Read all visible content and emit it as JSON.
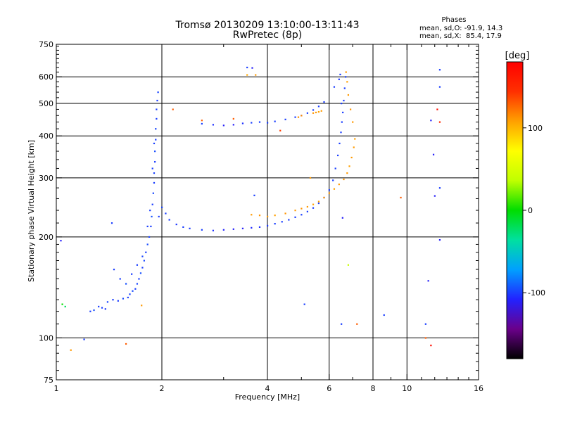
{
  "chart_data": {
    "type": "scatter",
    "title": "Tromsø 20130209 13:10:00-13:11:43",
    "subtitle": "RwPretec (8p)",
    "xlabel": "Frequency [MHz]",
    "ylabel": "Stationary phase Virtual Height [km]",
    "x_scale": "log",
    "y_scale": "log",
    "xlim": [
      1,
      16
    ],
    "ylim": [
      75,
      750
    ],
    "x_ticks": [
      1,
      2,
      4,
      6,
      8,
      10,
      16
    ],
    "y_ticks": [
      75,
      100,
      200,
      300,
      400,
      500,
      600,
      750
    ],
    "x_major_gridlines": [
      2,
      4,
      6,
      8,
      10
    ],
    "y_major_gridlines": [
      100,
      200,
      300,
      400,
      500,
      600
    ],
    "grid": true,
    "info": {
      "title": "Phases",
      "line1": "mean, sd,O: -91.9, 14.3",
      "line2": "mean, sd,X:  85.4, 17.9"
    },
    "colorbar": {
      "label": "[deg]",
      "range": [
        -180,
        180
      ],
      "ticks": [
        100,
        0,
        -100
      ],
      "colors": [
        "#000000",
        "#6a008a",
        "#2222ff",
        "#00a0ff",
        "#00e0a0",
        "#00dd00",
        "#c0ff00",
        "#ffff00",
        "#ffa000",
        "#ff3000",
        "#ff0000"
      ]
    },
    "series": [
      {
        "note_o_trace": "",
        "points": [
          [
            1.25,
            120,
            -100
          ],
          [
            1.28,
            121,
            -95
          ],
          [
            1.32,
            124,
            -100
          ],
          [
            1.35,
            123,
            -100
          ],
          [
            1.38,
            122,
            -102
          ],
          [
            1.4,
            128,
            -98
          ],
          [
            1.45,
            130,
            -100
          ],
          [
            1.5,
            129,
            -101
          ],
          [
            1.55,
            131,
            -97
          ],
          [
            1.6,
            132,
            -100
          ],
          [
            1.62,
            135,
            -99
          ],
          [
            1.65,
            138,
            -96
          ],
          [
            1.68,
            140,
            -100
          ],
          [
            1.7,
            145,
            -98
          ],
          [
            1.72,
            150,
            -100
          ],
          [
            1.74,
            156,
            -95
          ],
          [
            1.76,
            162,
            -100
          ],
          [
            1.78,
            170,
            -97
          ],
          [
            1.8,
            180,
            -100
          ],
          [
            1.82,
            190,
            -96
          ],
          [
            1.84,
            200,
            -99
          ],
          [
            1.86,
            215,
            -100
          ],
          [
            1.87,
            230,
            -94
          ],
          [
            1.88,
            250,
            -100
          ],
          [
            1.89,
            270,
            -97
          ],
          [
            1.9,
            290,
            -100
          ],
          [
            1.9,
            310,
            -99
          ],
          [
            1.91,
            335,
            -100
          ],
          [
            1.91,
            360,
            -96
          ],
          [
            1.92,
            390,
            -100
          ],
          [
            1.92,
            420,
            -98
          ],
          [
            1.93,
            450,
            -100
          ],
          [
            1.93,
            480,
            -100
          ],
          [
            1.94,
            510,
            -100
          ],
          [
            1.95,
            540,
            -98
          ],
          [
            1.46,
            160,
            -100
          ],
          [
            1.52,
            150,
            -100
          ],
          [
            1.58,
            145,
            -95
          ],
          [
            1.64,
            155,
            -100
          ],
          [
            1.7,
            165,
            -100
          ],
          [
            1.76,
            175,
            -98
          ],
          [
            1.82,
            215,
            -100
          ],
          [
            1.85,
            240,
            -100
          ],
          [
            1.88,
            320,
            -100
          ],
          [
            1.9,
            380,
            -100
          ],
          [
            1.96,
            230,
            -100
          ],
          [
            2.0,
            245,
            -98
          ],
          [
            2.05,
            235,
            -100
          ],
          [
            2.1,
            225,
            -100
          ],
          [
            2.2,
            218,
            -102
          ],
          [
            2.3,
            214,
            -100
          ],
          [
            2.4,
            212,
            -101
          ],
          [
            2.6,
            210,
            -100
          ],
          [
            2.8,
            209,
            -104
          ],
          [
            3.0,
            210,
            -108
          ],
          [
            3.2,
            211,
            -110
          ],
          [
            3.4,
            212,
            -110
          ],
          [
            3.6,
            213,
            -106
          ],
          [
            3.8,
            214,
            -104
          ],
          [
            4.0,
            216,
            -102
          ],
          [
            4.2,
            219,
            -100
          ],
          [
            4.4,
            222,
            -100
          ],
          [
            4.6,
            225,
            -100
          ],
          [
            4.8,
            229,
            -100
          ],
          [
            5.0,
            233,
            -100
          ],
          [
            5.2,
            238,
            -100
          ],
          [
            5.4,
            244,
            -100
          ],
          [
            5.6,
            252,
            -100
          ],
          [
            5.8,
            262,
            -100
          ],
          [
            6.0,
            276,
            -100
          ],
          [
            6.15,
            295,
            -100
          ],
          [
            6.25,
            320,
            -100
          ],
          [
            6.35,
            350,
            -100
          ],
          [
            6.42,
            380,
            -100
          ],
          [
            6.48,
            410,
            -100
          ],
          [
            6.52,
            440,
            -100
          ],
          [
            6.56,
            470,
            -100
          ],
          [
            6.6,
            510,
            -100
          ],
          [
            6.64,
            555,
            -100
          ],
          [
            6.68,
            600,
            -100
          ],
          [
            6.4,
            590,
            -102
          ],
          [
            6.45,
            610,
            -100
          ],
          [
            6.2,
            560,
            -100
          ],
          [
            6.5,
            500,
            -100
          ],
          [
            2.6,
            435,
            -100
          ],
          [
            2.8,
            432,
            -104
          ],
          [
            3.0,
            430,
            -110
          ],
          [
            3.2,
            432,
            -110
          ],
          [
            3.4,
            436,
            -104
          ],
          [
            3.6,
            438,
            -100
          ],
          [
            3.8,
            440,
            -100
          ],
          [
            4.0,
            438,
            -100
          ],
          [
            4.2,
            442,
            -100
          ],
          [
            4.5,
            448,
            -100
          ],
          [
            4.8,
            455,
            -100
          ],
          [
            5.0,
            460,
            -100
          ],
          [
            5.2,
            468,
            -100
          ],
          [
            5.4,
            478,
            -100
          ],
          [
            5.6,
            490,
            -100
          ],
          [
            5.8,
            505,
            -100
          ],
          [
            3.5,
            640,
            -100
          ],
          [
            3.62,
            638,
            -110
          ],
          [
            1.03,
            195,
            -110
          ],
          [
            1.04,
            126,
            0
          ],
          [
            1.06,
            124,
            -20
          ],
          [
            1.2,
            99,
            -100
          ],
          [
            1.44,
            220,
            -100
          ],
          [
            3.67,
            266,
            -100
          ],
          [
            5.1,
            126,
            -100
          ],
          [
            6.55,
            228,
            -110
          ],
          [
            6.5,
            110,
            -100
          ],
          [
            8.6,
            117,
            -100
          ],
          [
            11.3,
            110,
            -100
          ],
          [
            11.7,
            445,
            -110
          ],
          [
            11.9,
            352,
            -110
          ],
          [
            12.0,
            265,
            -110
          ],
          [
            12.4,
            196,
            -110
          ],
          [
            12.4,
            630,
            -100
          ],
          [
            12.4,
            560,
            -100
          ],
          [
            11.5,
            148,
            -110
          ],
          [
            12.4,
            280,
            -100
          ]
        ]
      },
      {
        "note_x_trace": "",
        "points": [
          [
            3.6,
            233,
            110
          ],
          [
            3.8,
            232,
            112
          ],
          [
            4.0,
            230,
            110
          ],
          [
            4.2,
            232,
            108
          ],
          [
            4.5,
            235,
            112
          ],
          [
            4.8,
            240,
            110
          ],
          [
            5.0,
            243,
            112
          ],
          [
            5.2,
            246,
            110
          ],
          [
            5.4,
            250,
            108
          ],
          [
            5.6,
            255,
            110
          ],
          [
            5.8,
            262,
            112
          ],
          [
            6.0,
            270,
            110
          ],
          [
            6.2,
            278,
            108
          ],
          [
            6.4,
            287,
            110
          ],
          [
            6.6,
            297,
            112
          ],
          [
            6.75,
            310,
            110
          ],
          [
            6.85,
            325,
            108
          ],
          [
            6.95,
            345,
            110
          ],
          [
            7.05,
            370,
            110
          ],
          [
            7.1,
            392,
            108
          ],
          [
            7.0,
            440,
            110
          ],
          [
            6.9,
            480,
            112
          ],
          [
            6.8,
            530,
            110
          ],
          [
            6.75,
            580,
            108
          ],
          [
            6.7,
            620,
            110
          ],
          [
            5.4,
            468,
            112
          ],
          [
            5.5,
            470,
            110
          ],
          [
            5.6,
            472,
            108
          ],
          [
            5.7,
            475,
            110
          ],
          [
            2.6,
            445,
            130
          ],
          [
            3.2,
            450,
            130
          ],
          [
            3.7,
            608,
            110
          ],
          [
            3.5,
            608,
            105
          ],
          [
            1.1,
            92,
            110
          ],
          [
            1.58,
            96,
            130
          ],
          [
            1.75,
            125,
            110
          ],
          [
            2.15,
            480,
            130
          ],
          [
            4.35,
            415,
            140
          ],
          [
            5.3,
            300,
            110
          ],
          [
            6.8,
            165,
            40
          ],
          [
            7.2,
            110,
            130
          ],
          [
            9.6,
            262,
            130
          ],
          [
            11.3,
            100,
            130
          ],
          [
            11.7,
            95,
            170
          ],
          [
            12.2,
            480,
            170
          ],
          [
            12.4,
            440,
            150
          ],
          [
            5.0,
            460,
            115
          ],
          [
            4.9,
            455,
            112
          ]
        ]
      }
    ]
  }
}
